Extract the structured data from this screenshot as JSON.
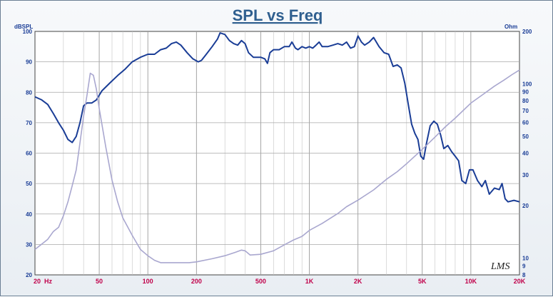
{
  "chart_data": {
    "type": "line",
    "title": "SPL vs Freq",
    "y_left_label": "dBSPL",
    "y_right_label": "Ohm",
    "x_scale": "log",
    "xlim": [
      20,
      20000
    ],
    "ylim_left": [
      20,
      100
    ],
    "ylim_right": [
      8,
      200
    ],
    "y_right_scale": "log",
    "grid": true,
    "x_ticks": [
      {
        "value": 20,
        "label": "20"
      },
      {
        "value": 50,
        "label": "50"
      },
      {
        "value": 100,
        "label": "100"
      },
      {
        "value": 200,
        "label": "200"
      },
      {
        "value": 500,
        "label": "500"
      },
      {
        "value": 1000,
        "label": "1K"
      },
      {
        "value": 2000,
        "label": "2K"
      },
      {
        "value": 5000,
        "label": "5K"
      },
      {
        "value": 10000,
        "label": "10K"
      },
      {
        "value": 20000,
        "label": "20K"
      }
    ],
    "x_unit": "Hz",
    "y_left_ticks": [
      20,
      30,
      40,
      50,
      60,
      70,
      80,
      90,
      100
    ],
    "y_right_ticks": [
      8,
      9,
      10,
      20,
      30,
      40,
      50,
      60,
      70,
      80,
      90,
      100,
      200
    ],
    "annotation": "LMS",
    "colors": {
      "spl": "#1a3d96",
      "impedance": "#a9a7cf",
      "text": "#1a3d96",
      "xtick": "#c0004a"
    },
    "series": [
      {
        "axis": "left",
        "style": "spl",
        "points": [
          [
            20,
            78.5
          ],
          [
            22,
            77.5
          ],
          [
            24,
            76
          ],
          [
            26,
            73
          ],
          [
            28,
            70
          ],
          [
            30,
            67.5
          ],
          [
            32,
            64.5
          ],
          [
            34,
            63.5
          ],
          [
            36,
            65.5
          ],
          [
            38,
            70
          ],
          [
            40,
            75.5
          ],
          [
            42,
            76.5
          ],
          [
            45,
            76.5
          ],
          [
            48,
            77.5
          ],
          [
            52,
            80.5
          ],
          [
            58,
            83
          ],
          [
            65,
            85.5
          ],
          [
            72,
            87.5
          ],
          [
            80,
            90
          ],
          [
            90,
            91.5
          ],
          [
            100,
            92.5
          ],
          [
            110,
            92.5
          ],
          [
            120,
            94
          ],
          [
            130,
            94.5
          ],
          [
            140,
            96
          ],
          [
            150,
            96.5
          ],
          [
            160,
            95.5
          ],
          [
            175,
            93
          ],
          [
            190,
            91
          ],
          [
            205,
            90
          ],
          [
            215,
            90.5
          ],
          [
            230,
            92.5
          ],
          [
            250,
            95
          ],
          [
            270,
            97.5
          ],
          [
            280,
            99.5
          ],
          [
            300,
            99
          ],
          [
            320,
            97
          ],
          [
            340,
            96
          ],
          [
            360,
            95.5
          ],
          [
            380,
            97
          ],
          [
            400,
            96
          ],
          [
            420,
            93
          ],
          [
            450,
            91.5
          ],
          [
            500,
            91.5
          ],
          [
            530,
            91
          ],
          [
            550,
            89.5
          ],
          [
            570,
            93
          ],
          [
            600,
            94
          ],
          [
            650,
            94
          ],
          [
            700,
            95
          ],
          [
            750,
            95
          ],
          [
            780,
            96.5
          ],
          [
            820,
            94.5
          ],
          [
            850,
            94
          ],
          [
            900,
            95
          ],
          [
            950,
            94.5
          ],
          [
            1000,
            95
          ],
          [
            1050,
            94.5
          ],
          [
            1100,
            95.5
          ],
          [
            1150,
            96.5
          ],
          [
            1200,
            95
          ],
          [
            1300,
            95
          ],
          [
            1400,
            95.5
          ],
          [
            1500,
            96
          ],
          [
            1600,
            95.5
          ],
          [
            1700,
            96.5
          ],
          [
            1800,
            94.5
          ],
          [
            1900,
            95
          ],
          [
            2000,
            98.5
          ],
          [
            2100,
            96.5
          ],
          [
            2200,
            95.5
          ],
          [
            2350,
            96.5
          ],
          [
            2500,
            98
          ],
          [
            2700,
            95
          ],
          [
            2900,
            93
          ],
          [
            3100,
            92.5
          ],
          [
            3300,
            88.5
          ],
          [
            3500,
            89
          ],
          [
            3700,
            88
          ],
          [
            3900,
            83
          ],
          [
            4100,
            76
          ],
          [
            4300,
            69.5
          ],
          [
            4500,
            66.5
          ],
          [
            4700,
            64.5
          ],
          [
            4900,
            59
          ],
          [
            5100,
            58
          ],
          [
            5300,
            63
          ],
          [
            5600,
            69
          ],
          [
            5900,
            70.5
          ],
          [
            6200,
            69.5
          ],
          [
            6500,
            66
          ],
          [
            6800,
            61.5
          ],
          [
            7200,
            62.5
          ],
          [
            7600,
            60.5
          ],
          [
            8000,
            59
          ],
          [
            8400,
            57.5
          ],
          [
            8800,
            51
          ],
          [
            9300,
            50
          ],
          [
            9800,
            54.5
          ],
          [
            10300,
            54.5
          ],
          [
            11000,
            51
          ],
          [
            11700,
            49
          ],
          [
            12300,
            51
          ],
          [
            13000,
            46.5
          ],
          [
            14000,
            48.5
          ],
          [
            15000,
            48
          ],
          [
            15600,
            50
          ],
          [
            16300,
            45
          ],
          [
            17000,
            44
          ],
          [
            18500,
            44.5
          ],
          [
            20000,
            44
          ]
        ]
      },
      {
        "axis": "right",
        "style": "impedance",
        "points": [
          [
            20,
            11.2
          ],
          [
            22,
            12.0
          ],
          [
            24,
            12.8
          ],
          [
            26,
            14.2
          ],
          [
            28,
            15.0
          ],
          [
            30,
            17.5
          ],
          [
            32,
            21.0
          ],
          [
            34,
            26.0
          ],
          [
            36,
            32.0
          ],
          [
            38,
            46.0
          ],
          [
            40,
            65.0
          ],
          [
            42,
            86.0
          ],
          [
            44,
            115.0
          ],
          [
            46,
            112.0
          ],
          [
            48,
            93.0
          ],
          [
            50,
            72.0
          ],
          [
            55,
            43.0
          ],
          [
            60,
            28.0
          ],
          [
            65,
            21.0
          ],
          [
            70,
            17.0
          ],
          [
            80,
            13.5
          ],
          [
            90,
            11.2
          ],
          [
            100,
            10.3
          ],
          [
            110,
            9.7
          ],
          [
            120,
            9.4
          ],
          [
            130,
            9.4
          ],
          [
            150,
            9.4
          ],
          [
            180,
            9.4
          ],
          [
            200,
            9.5
          ],
          [
            250,
            9.9
          ],
          [
            300,
            10.3
          ],
          [
            350,
            10.8
          ],
          [
            380,
            11.1
          ],
          [
            400,
            11.0
          ],
          [
            430,
            10.4
          ],
          [
            500,
            10.5
          ],
          [
            600,
            11.0
          ],
          [
            700,
            11.9
          ],
          [
            800,
            12.7
          ],
          [
            900,
            13.3
          ],
          [
            1000,
            14.4
          ],
          [
            1200,
            15.8
          ],
          [
            1500,
            18.0
          ],
          [
            1700,
            19.7
          ],
          [
            2000,
            21.5
          ],
          [
            2500,
            24.6
          ],
          [
            3000,
            28.3
          ],
          [
            3500,
            31.3
          ],
          [
            4000,
            34.8
          ],
          [
            5000,
            42.0
          ],
          [
            6000,
            49.5
          ],
          [
            7000,
            57.0
          ],
          [
            8000,
            63.5
          ],
          [
            10000,
            77.5
          ],
          [
            12000,
            87.5
          ],
          [
            14000,
            97.0
          ],
          [
            16000,
            105.0
          ],
          [
            18000,
            113.0
          ],
          [
            20000,
            120.0
          ]
        ]
      }
    ]
  }
}
